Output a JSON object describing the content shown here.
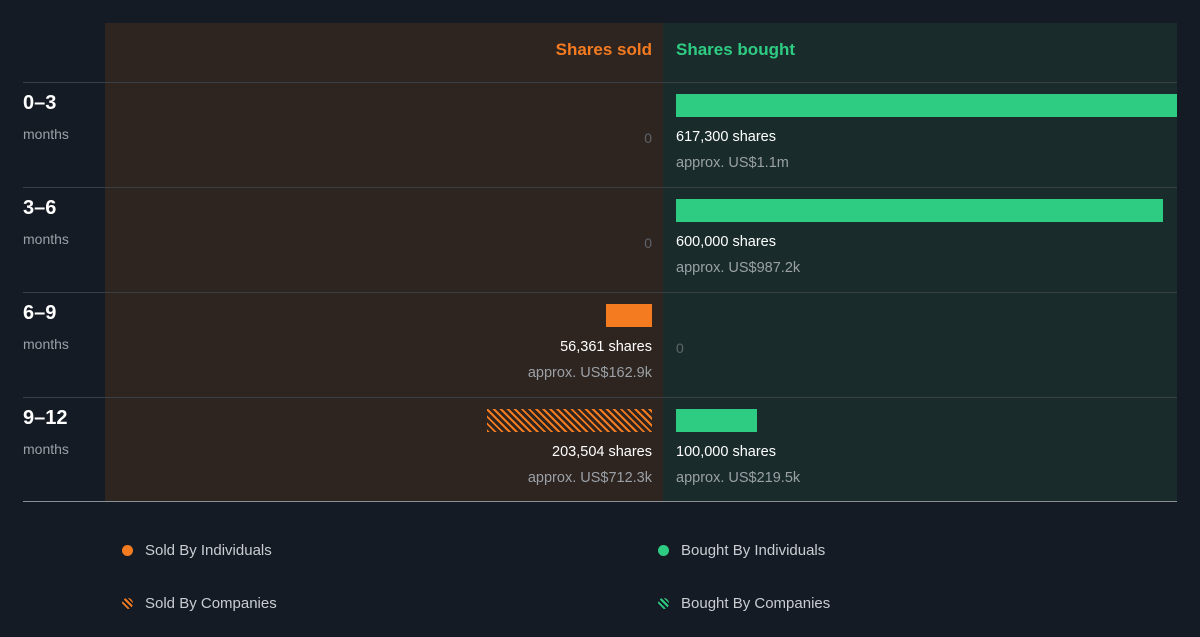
{
  "headers": {
    "sold": "Shares sold",
    "bought": "Shares bought"
  },
  "rows": [
    {
      "period": "0–3",
      "unit": "months",
      "sold": {
        "value": "0"
      },
      "bought": {
        "shares": "617,300 shares",
        "approx": "approx. US$1.1m"
      }
    },
    {
      "period": "3–6",
      "unit": "months",
      "sold": {
        "value": "0"
      },
      "bought": {
        "shares": "600,000 shares",
        "approx": "approx. US$987.2k"
      }
    },
    {
      "period": "6–9",
      "unit": "months",
      "sold": {
        "shares": "56,361 shares",
        "approx": "approx. US$162.9k"
      },
      "bought": {
        "value": "0"
      }
    },
    {
      "period": "9–12",
      "unit": "months",
      "sold": {
        "shares": "203,504 shares",
        "approx": "approx. US$712.3k"
      },
      "bought": {
        "shares": "100,000 shares",
        "approx": "approx. US$219.5k"
      }
    }
  ],
  "legend": {
    "sold_individuals": "Sold By Individuals",
    "sold_companies": "Sold By Companies",
    "bought_individuals": "Bought By Individuals",
    "bought_companies": "Bought By Companies"
  },
  "colors": {
    "sold": "#f47b20",
    "bought": "#2ecc82"
  },
  "chart_data": {
    "type": "bar",
    "categories": [
      "0–3 months",
      "3–6 months",
      "6–9 months",
      "9–12 months"
    ],
    "series": [
      {
        "name": "Sold By Individuals",
        "values": [
          0,
          0,
          56361,
          0
        ]
      },
      {
        "name": "Sold By Companies",
        "values": [
          0,
          0,
          0,
          203504
        ]
      },
      {
        "name": "Bought By Individuals",
        "values": [
          617300,
          600000,
          0,
          100000
        ]
      },
      {
        "name": "Bought By Companies",
        "values": [
          0,
          0,
          0,
          0
        ]
      }
    ],
    "title": "",
    "xlabel": "",
    "ylabel": ""
  }
}
